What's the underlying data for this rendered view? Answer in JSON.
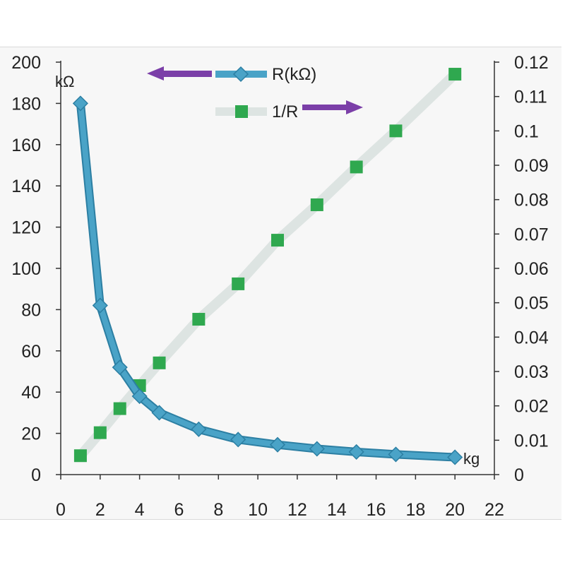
{
  "chart_data": {
    "type": "line",
    "x": [
      1,
      2,
      3,
      4,
      5,
      7,
      9,
      11,
      13,
      15,
      17,
      20
    ],
    "xlim": [
      0,
      22
    ],
    "x_ticks": [
      "0",
      "2",
      "4",
      "6",
      "8",
      "10",
      "12",
      "14",
      "16",
      "18",
      "20",
      "22"
    ],
    "x_unit": "kg",
    "y_left": {
      "lim": [
        0,
        200
      ],
      "ticks": [
        "0",
        "20",
        "40",
        "60",
        "80",
        "100",
        "120",
        "140",
        "160",
        "180",
        "200"
      ],
      "unit": "kΩ"
    },
    "y_right": {
      "lim": [
        0,
        0.12
      ],
      "ticks": [
        "0",
        "0.01",
        "0.02",
        "0.03",
        "0.04",
        "0.05",
        "0.06",
        "0.07",
        "0.08",
        "0.09",
        "0.1",
        "0.11",
        "0.12"
      ]
    },
    "series": [
      {
        "name": "R(kΩ)",
        "axis": "left",
        "marker": "diamond",
        "color": "#4aa3c7",
        "values": [
          180,
          82,
          52,
          38,
          30,
          22,
          17,
          14.5,
          12.5,
          11,
          9.8,
          8.4
        ]
      },
      {
        "name": "1/R",
        "axis": "right",
        "marker": "square",
        "color": "#2fa84f",
        "line_color": "#dde4e2",
        "values": [
          0.0055,
          0.0122,
          0.0192,
          0.0259,
          0.0325,
          0.0452,
          0.0555,
          0.0682,
          0.0785,
          0.0895,
          0.1,
          0.1165
        ]
      }
    ],
    "legend": {
      "position": "top-center",
      "arrow_color": "#7b3fa8",
      "entries": [
        "R(kΩ)",
        "1/R"
      ]
    }
  }
}
